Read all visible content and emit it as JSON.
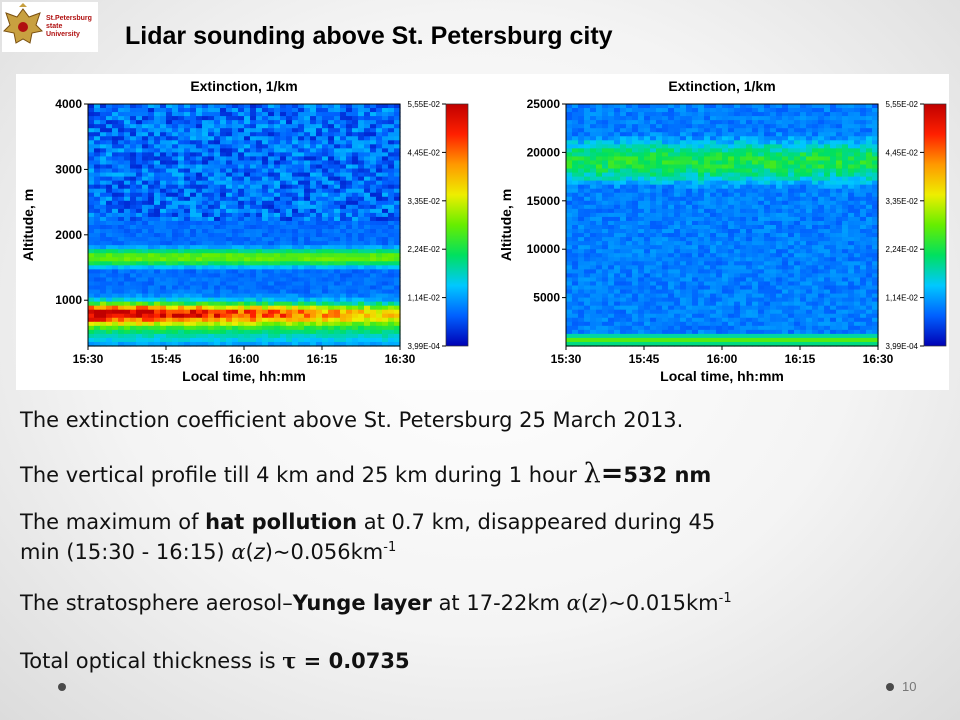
{
  "logo": {
    "lines": [
      "St.Petersburg",
      "state",
      "University"
    ]
  },
  "title": "Lidar sounding above St. Petersburg city",
  "colors": {
    "scale": [
      "#0000b4",
      "#0060ff",
      "#00c8ff",
      "#00e060",
      "#66ee00",
      "#eeee00",
      "#ff9900",
      "#ff2000",
      "#c00000"
    ],
    "hat_pollution_band": "#d00000"
  },
  "chart_data": [
    {
      "type": "heatmap",
      "title": "Extinction, 1/km",
      "xlabel": "Local time, hh:mm",
      "ylabel": "Altitude, m",
      "x_ticks": [
        "15:30",
        "15:45",
        "16:00",
        "16:15",
        "16:30"
      ],
      "y_ticks": [
        1000,
        2000,
        3000,
        4000
      ],
      "xlim": [
        "15:30",
        "16:30"
      ],
      "ylim": [
        300,
        4000
      ],
      "colorbar_ticks": [
        "5,55E-02",
        "4,45E-02",
        "3,35E-02",
        "2,24E-02",
        "1,14E-02",
        "3,99E-04"
      ],
      "colorbar_range": [
        0.000399,
        0.0555
      ],
      "features": [
        {
          "feature": "hat pollution",
          "altitude_m": [
            700,
            900
          ],
          "extinction_level": "high"
        },
        {
          "feature": "aerosol layer",
          "altitude_m": [
            1500,
            1800
          ],
          "extinction_level": "moderate"
        }
      ]
    },
    {
      "type": "heatmap",
      "title": "Extinction, 1/km",
      "xlabel": "Local time, hh:mm",
      "ylabel": "Altitude, m",
      "x_ticks": [
        "15:30",
        "15:45",
        "16:00",
        "16:15",
        "16:30"
      ],
      "y_ticks": [
        5000,
        10000,
        15000,
        20000,
        25000
      ],
      "xlim": [
        "15:30",
        "16:30"
      ],
      "ylim": [
        0,
        25000
      ],
      "colorbar_ticks": [
        "5,55E-02",
        "4,45E-02",
        "3,35E-02",
        "2,24E-02",
        "1,14E-02",
        "3,99E-04"
      ],
      "colorbar_range": [
        0.000399,
        0.0555
      ],
      "features": [
        {
          "feature": "boundary layer",
          "altitude_m": [
            0,
            1500
          ],
          "extinction_level": "moderate"
        },
        {
          "feature": "Yunge layer",
          "altitude_m": [
            17000,
            22000
          ],
          "extinction_level": "moderate"
        }
      ]
    }
  ],
  "text": {
    "line1": "The extinction coefficient above St. Petersburg 25 March 2013.",
    "line2_a": "The vertical profile till 4 km and 25 km during 1 hour ",
    "line2_lambda": "λ",
    "line2_b": "=",
    "line2_c": "532 nm",
    "line3_a": "The maximum of ",
    "line3_bold": "hat pollution",
    "line3_b": " at 0.7 km, disappeared during 45",
    "line4_a": "min (15:30 - 16:15) ",
    "line4_alpha": "α",
    "line4_paren": "(",
    "line4_z": "z",
    "line4_b": ")~0.056km",
    "line4_sup": "-1",
    "line5_a": "The stratosphere  aerosol–",
    "line5_bold": "Yunge layer",
    "line5_b": " at 17-22km ",
    "line5_alpha": "α",
    "line5_paren": "(",
    "line5_z": "z",
    "line5_c": ")~0.015km",
    "line5_sup": "-1",
    "line6_a": "Total optical thickness is  ",
    "line6_tau": "τ =",
    "line6_b": " 0.0735"
  },
  "footer": {
    "page_number": "10"
  }
}
